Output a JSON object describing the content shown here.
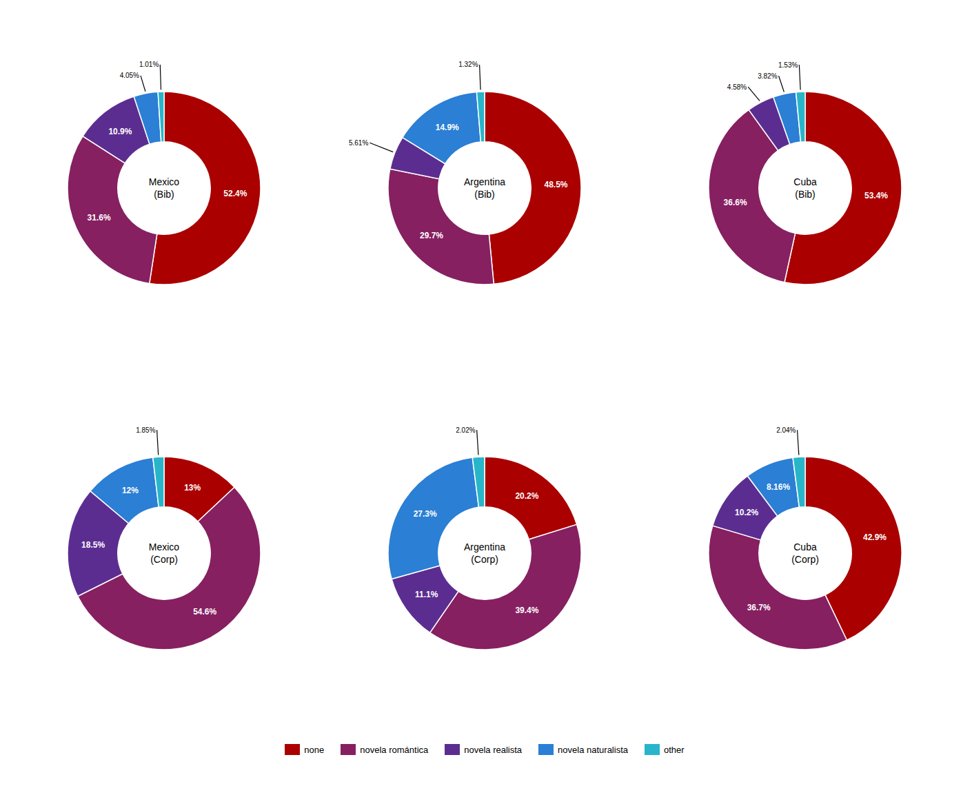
{
  "chart_data": [
    {
      "type": "pie",
      "title": "Mexico\n(Bib)",
      "categories": [
        "none",
        "novela romántica",
        "novela realista",
        "novela naturalista",
        "other"
      ],
      "values": [
        52.4,
        31.6,
        10.9,
        4.05,
        1.01
      ],
      "value_labels": [
        "52.4%",
        "31.6%",
        "10.9%",
        "4.05%",
        "1.01%"
      ],
      "colors": [
        "#aa0000",
        "#862061",
        "#5c2d91",
        "#2b7fd4",
        "#29b5c9"
      ],
      "data_labels": true,
      "legend": "bottom"
    },
    {
      "type": "pie",
      "title": "Argentina\n(Bib)",
      "categories": [
        "none",
        "novela romántica",
        "novela realista",
        "novela naturalista",
        "other"
      ],
      "values": [
        48.5,
        29.7,
        5.61,
        14.9,
        1.32
      ],
      "value_labels": [
        "48.5%",
        "29.7%",
        "5.61%",
        "14.9%",
        "1.32%"
      ],
      "colors": [
        "#aa0000",
        "#862061",
        "#5c2d91",
        "#2b7fd4",
        "#29b5c9"
      ],
      "data_labels": true,
      "legend": "bottom"
    },
    {
      "type": "pie",
      "title": "Cuba\n(Bib)",
      "categories": [
        "none",
        "novela romántica",
        "novela realista",
        "novela naturalista",
        "other"
      ],
      "values": [
        53.4,
        36.6,
        4.58,
        3.82,
        1.53
      ],
      "value_labels": [
        "53.4%",
        "36.6%",
        "4.58%",
        "3.82%",
        "1.53%"
      ],
      "colors": [
        "#aa0000",
        "#862061",
        "#5c2d91",
        "#2b7fd4",
        "#29b5c9"
      ],
      "data_labels": true,
      "legend": "bottom"
    },
    {
      "type": "pie",
      "title": "Mexico\n(Corp)",
      "categories": [
        "none",
        "novela romántica",
        "novela realista",
        "novela naturalista",
        "other"
      ],
      "values": [
        13.0,
        54.6,
        18.5,
        12.0,
        1.85
      ],
      "value_labels": [
        "13%",
        "54.6%",
        "18.5%",
        "12%",
        "1.85%"
      ],
      "colors": [
        "#aa0000",
        "#862061",
        "#5c2d91",
        "#2b7fd4",
        "#29b5c9"
      ],
      "data_labels": true,
      "legend": "bottom"
    },
    {
      "type": "pie",
      "title": "Argentina\n(Corp)",
      "categories": [
        "none",
        "novela romántica",
        "novela realista",
        "novela naturalista",
        "other"
      ],
      "values": [
        20.2,
        39.4,
        11.1,
        27.3,
        2.02
      ],
      "value_labels": [
        "20.2%",
        "39.4%",
        "11.1%",
        "27.3%",
        "2.02%"
      ],
      "colors": [
        "#aa0000",
        "#862061",
        "#5c2d91",
        "#2b7fd4",
        "#29b5c9"
      ],
      "data_labels": true,
      "legend": "bottom"
    },
    {
      "type": "pie",
      "title": "Cuba\n(Corp)",
      "categories": [
        "none",
        "novela romántica",
        "novela realista",
        "novela naturalista",
        "other"
      ],
      "values": [
        42.9,
        36.7,
        10.2,
        8.16,
        2.04
      ],
      "value_labels": [
        "42.9%",
        "36.7%",
        "10.2%",
        "8.16%",
        "2.04%"
      ],
      "colors": [
        "#aa0000",
        "#862061",
        "#5c2d91",
        "#2b7fd4",
        "#29b5c9"
      ],
      "data_labels": true,
      "legend": "bottom"
    }
  ]
}
